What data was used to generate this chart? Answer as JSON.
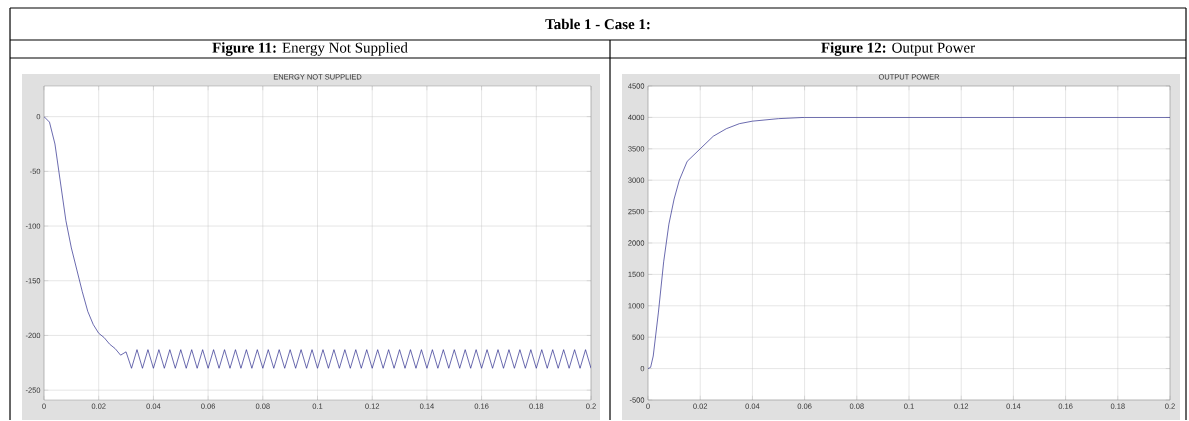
{
  "chart_data": [
    {
      "type": "line",
      "title": "ENERGY NOT SUPPLIED",
      "subtitle": "**Figure 11:** Energy Not Supplied",
      "annotations": [
        "**Table 1 - Case 1:**"
      ],
      "color": "#2b2b8c",
      "x": [
        0,
        0.002,
        0.004,
        0.006,
        0.008,
        0.01,
        0.012,
        0.014,
        0.016,
        0.018,
        0.02,
        0.022,
        0.024,
        0.026,
        0.028,
        0.03,
        0.032,
        0.034,
        0.036,
        0.038,
        0.04,
        0.042,
        0.044,
        0.046,
        0.048,
        0.05,
        0.052,
        0.054,
        0.056,
        0.058,
        0.06,
        0.062,
        0.064,
        0.066,
        0.068,
        0.07,
        0.072,
        0.074,
        0.076,
        0.078,
        0.08,
        0.082,
        0.084,
        0.086,
        0.088,
        0.09,
        0.092,
        0.094,
        0.096,
        0.098,
        0.1,
        0.102,
        0.104,
        0.106,
        0.108,
        0.11,
        0.112,
        0.114,
        0.116,
        0.118,
        0.12,
        0.122,
        0.124,
        0.126,
        0.128,
        0.13,
        0.132,
        0.134,
        0.136,
        0.138,
        0.14,
        0.142,
        0.144,
        0.146,
        0.148,
        0.15,
        0.152,
        0.154,
        0.156,
        0.158,
        0.16,
        0.162,
        0.164,
        0.166,
        0.168,
        0.17,
        0.172,
        0.174,
        0.176,
        0.178,
        0.18,
        0.182,
        0.184,
        0.186,
        0.188,
        0.19,
        0.192,
        0.194,
        0.196,
        0.198,
        0.2
      ],
      "values": [
        0,
        -5,
        -25,
        -60,
        -95,
        -120,
        -140,
        -160,
        -178,
        -190,
        -198,
        -202,
        -208,
        -212,
        -218,
        -215,
        -230,
        -213,
        -230,
        -213,
        -230,
        -213,
        -230,
        -213,
        -230,
        -213,
        -230,
        -213,
        -230,
        -213,
        -230,
        -213,
        -230,
        -213,
        -230,
        -213,
        -230,
        -213,
        -230,
        -213,
        -230,
        -213,
        -230,
        -213,
        -230,
        -213,
        -230,
        -213,
        -230,
        -213,
        -230,
        -213,
        -230,
        -213,
        -230,
        -213,
        -230,
        -213,
        -230,
        -213,
        -230,
        -213,
        -230,
        -213,
        -230,
        -213,
        -230,
        -213,
        -230,
        -213,
        -230,
        -213,
        -230,
        -213,
        -230,
        -213,
        -230,
        -213,
        -230,
        -213,
        -230,
        -213,
        -230,
        -213,
        -230,
        -213,
        -230,
        -213,
        -230,
        -213,
        -230,
        -213,
        -230,
        -213,
        -230,
        -213,
        -230,
        -213,
        -230,
        -213,
        -230
      ],
      "xlim": [
        0,
        0.2
      ],
      "xticks": [
        0,
        0.02,
        0.04,
        0.06,
        0.08,
        0.1,
        0.12,
        0.14,
        0.16,
        0.18,
        0.2
      ],
      "ylim": [
        -259,
        28
      ],
      "yticks": [
        -250,
        -200,
        -150,
        -100,
        -50,
        0
      ],
      "grid": true
    },
    {
      "type": "line",
      "title": "OUTPUT POWER",
      "subtitle": "**Figure 12:** Output Power",
      "color": "#2b2b8c",
      "x": [
        0,
        0.001,
        0.002,
        0.004,
        0.006,
        0.008,
        0.01,
        0.012,
        0.015,
        0.02,
        0.025,
        0.03,
        0.035,
        0.04,
        0.05,
        0.06,
        0.08,
        0.1,
        0.15,
        0.2
      ],
      "values": [
        0,
        20,
        200,
        900,
        1700,
        2300,
        2700,
        3000,
        3300,
        3500,
        3700,
        3820,
        3900,
        3940,
        3980,
        4000,
        4000,
        4000,
        4000,
        4000
      ],
      "xlim": [
        0,
        0.2
      ],
      "xticks": [
        0,
        0.02,
        0.04,
        0.06,
        0.08,
        0.1,
        0.12,
        0.14,
        0.16,
        0.18,
        0.2
      ],
      "ylim": [
        -500,
        4500
      ],
      "yticks": [
        -500,
        0,
        500,
        1000,
        1500,
        2000,
        2500,
        3000,
        3500,
        4000,
        4500
      ],
      "grid": true
    }
  ]
}
